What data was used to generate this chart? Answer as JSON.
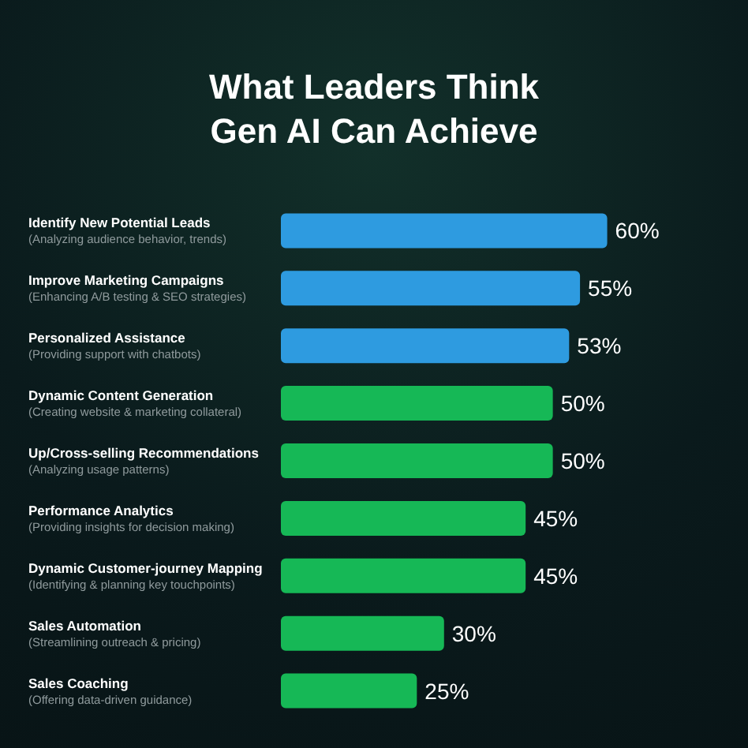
{
  "chart_data": {
    "type": "bar",
    "orientation": "horizontal",
    "title": "What Leaders Think\nGen AI Can Achieve",
    "categories": [
      "Identify New Potential Leads\n(Analyzing audience behavior, trends)",
      "Improve Marketing Campaigns\n(Enhancing A/B testing & SEO strategies)",
      "Personalized Assistance\n(Providing support with chatbots)",
      "Dynamic Content Generation\n(Creating website & marketing collateral)",
      "Up/Cross-selling Recommendations\n(Analyzing usage patterns)",
      "Performance Analytics\n(Providing insights for decision making)",
      "Dynamic Customer-journey Mapping\n(Identifying & planning key touchpoints)",
      "Sales Automation\n(Streamlining outreach & pricing)",
      "Sales Coaching\n(Offering data-driven guidance)"
    ],
    "values": [
      60,
      55,
      53,
      50,
      50,
      45,
      45,
      30,
      25
    ],
    "value_labels": [
      "60%",
      "55%",
      "53%",
      "50%",
      "50%",
      "45%",
      "45%",
      "30%",
      "25%"
    ],
    "colors": [
      "#2e9be0",
      "#2e9be0",
      "#2e9be0",
      "#16b856",
      "#16b856",
      "#16b856",
      "#16b856",
      "#16b856",
      "#16b856"
    ]
  }
}
